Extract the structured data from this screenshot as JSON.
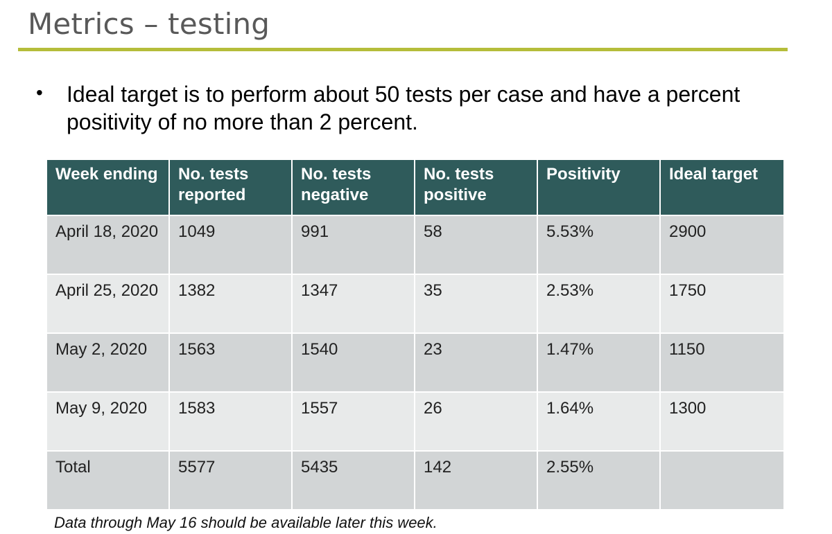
{
  "slide": {
    "title": "Metrics – testing",
    "bullet": "Ideal target is to perform about 50 tests per case and have a percent positivity of no more than 2 percent.",
    "footnote": "Data through May 16 should be available later this week."
  },
  "table": {
    "headers": [
      "Week ending",
      "No. tests reported",
      "No. tests negative",
      "No. tests positive",
      "Positivity",
      "Ideal target"
    ],
    "rows": [
      [
        "April 18, 2020",
        "1049",
        "991",
        "58",
        "5.53%",
        "2900"
      ],
      [
        "April 25, 2020",
        "1382",
        "1347",
        "35",
        "2.53%",
        "1750"
      ],
      [
        "May 2, 2020",
        "1563",
        "1540",
        "23",
        "1.47%",
        "1150"
      ],
      [
        "May 9, 2020",
        "1583",
        "1557",
        "26",
        "1.64%",
        "1300"
      ],
      [
        "Total",
        "5577",
        "5435",
        "142",
        "2.55%",
        ""
      ]
    ]
  },
  "colors": {
    "header_bg": "#2f5b5b",
    "rule": "#b5bd3a",
    "row_dark": "#d2d5d6",
    "row_light": "#e8eaea"
  }
}
